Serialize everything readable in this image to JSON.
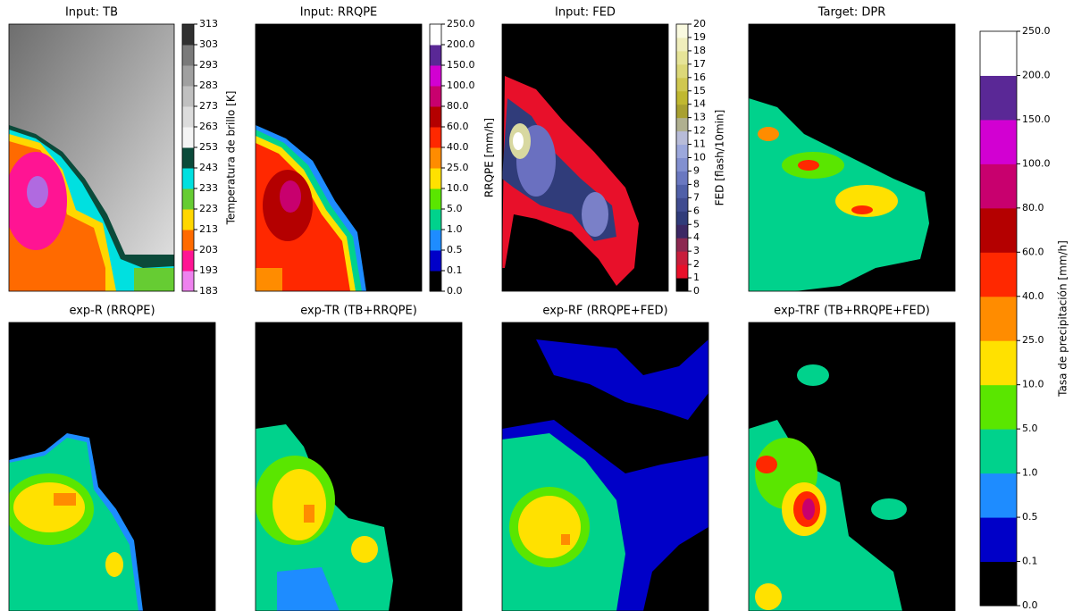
{
  "panels": [
    {
      "title": "Input: TB",
      "colorbar": {
        "label": "Temperatura de brillo [K]",
        "ticks": [
          "183",
          "193",
          "203",
          "213",
          "223",
          "233",
          "243",
          "253",
          "263",
          "273",
          "283",
          "293",
          "303",
          "313"
        ]
      }
    },
    {
      "title": "Input: RRQPE",
      "colorbar": {
        "label": "RRQPE [mm/h]",
        "ticks": [
          "0.0",
          "0.1",
          "0.5",
          "1.0",
          "5.0",
          "10.0",
          "25.0",
          "40.0",
          "60.0",
          "80.0",
          "100.0",
          "150.0",
          "200.0",
          "250.0"
        ]
      }
    },
    {
      "title": "Input: FED",
      "colorbar": {
        "label": "FED [flash/10min]",
        "ticks": [
          "0",
          "1",
          "2",
          "3",
          "4",
          "5",
          "6",
          "7",
          "8",
          "9",
          "10",
          "11",
          "12",
          "13",
          "14",
          "15",
          "16",
          "17",
          "18",
          "19",
          "20"
        ]
      }
    },
    {
      "title": "Target: DPR"
    },
    {
      "title": "exp-R (RRQPE)"
    },
    {
      "title": "exp-TR (TB+RRQPE)"
    },
    {
      "title": "exp-RF (RRQPE+FED)"
    },
    {
      "title": "exp-TRF (TB+RRQPE+FED)"
    }
  ],
  "colorbar": {
    "label": "Tasa de precipitación [mm/h]",
    "ticks": [
      "0.0",
      "0.1",
      "0.5",
      "1.0",
      "5.0",
      "10.0",
      "25.0",
      "40.0",
      "60.0",
      "80.0",
      "100.0",
      "150.0",
      "200.0",
      "250.0"
    ]
  }
}
